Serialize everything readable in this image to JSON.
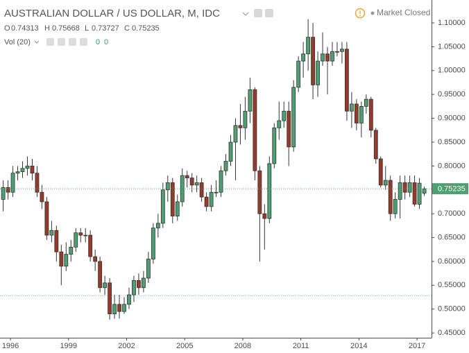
{
  "chart_data": {
    "type": "candlestick",
    "title": "AUSTRALIAN DOLLAR / US DOLLAR, M, IDC",
    "status": "Market Closed",
    "ohlc_labels": [
      "O",
      "H",
      "L",
      "C"
    ],
    "volume_label": "Vol (20)",
    "volume_values": [
      0,
      0
    ],
    "up_color": "#4e9f72",
    "down_color": "#963a29",
    "last_price_line": true,
    "reference_line": 0.528,
    "grid": false,
    "xlim": [
      1995.46,
      2017.75
    ],
    "xticks": [
      1996,
      1999,
      2002,
      2005,
      2008,
      2011,
      2014,
      2017
    ],
    "ylim": [
      0.44,
      1.148
    ],
    "yticks": [
      {
        "value": 0.45,
        "label": "0.45000"
      },
      {
        "value": 0.5,
        "label": "0.50000"
      },
      {
        "value": 0.55,
        "label": "0.55000"
      },
      {
        "value": 0.6,
        "label": "0.60000"
      },
      {
        "value": 0.65,
        "label": "0.65000"
      },
      {
        "value": 0.7,
        "label": "0.70000"
      },
      {
        "value": 0.75,
        "label": "0.75000"
      },
      {
        "value": 0.8,
        "label": "0.80000"
      },
      {
        "value": 0.85,
        "label": "0.85000"
      },
      {
        "value": 0.9,
        "label": "0.90000"
      },
      {
        "value": 0.95,
        "label": "0.95000"
      },
      {
        "value": 1.0,
        "label": "1.00000"
      },
      {
        "value": 1.05,
        "label": "1.05000"
      },
      {
        "value": 1.1,
        "label": "1.10000"
      }
    ],
    "x": [
      1995.5,
      1995.75,
      1996,
      1996.25,
      1996.5,
      1996.75,
      1997,
      1997.25,
      1997.5,
      1997.75,
      1998,
      1998.25,
      1998.5,
      1998.75,
      1999,
      1999.25,
      1999.5,
      1999.75,
      2000,
      2000.25,
      2000.5,
      2000.75,
      2001,
      2001.25,
      2001.5,
      2001.75,
      2002,
      2002.25,
      2002.5,
      2002.75,
      2003,
      2003.25,
      2003.5,
      2003.75,
      2004,
      2004.25,
      2004.5,
      2004.75,
      2005,
      2005.25,
      2005.5,
      2005.75,
      2006,
      2006.25,
      2006.5,
      2006.75,
      2007,
      2007.25,
      2007.5,
      2007.75,
      2008,
      2008.25,
      2008.5,
      2008.75,
      2009,
      2009.25,
      2009.5,
      2009.75,
      2010,
      2010.25,
      2010.5,
      2010.75,
      2011,
      2011.25,
      2011.5,
      2011.75,
      2012,
      2012.25,
      2012.5,
      2012.75,
      2013,
      2013.25,
      2013.5,
      2013.75,
      2014,
      2014.25,
      2014.5,
      2014.75,
      2015,
      2015.25,
      2015.5,
      2015.75,
      2016,
      2016.25,
      2016.5,
      2016.75,
      2017,
      2017.25
    ],
    "open": [
      0.73,
      0.755,
      0.745,
      0.785,
      0.788,
      0.795,
      0.8,
      0.785,
      0.745,
      0.725,
      0.655,
      0.665,
      0.62,
      0.59,
      0.615,
      0.63,
      0.66,
      0.655,
      0.655,
      0.61,
      0.6,
      0.545,
      0.555,
      0.49,
      0.51,
      0.495,
      0.51,
      0.53,
      0.56,
      0.545,
      0.565,
      0.605,
      0.67,
      0.68,
      0.75,
      0.765,
      0.695,
      0.725,
      0.78,
      0.775,
      0.76,
      0.765,
      0.735,
      0.715,
      0.745,
      0.745,
      0.79,
      0.81,
      0.85,
      0.885,
      0.88,
      0.915,
      0.96,
      0.79,
      0.7,
      0.69,
      0.805,
      0.88,
      0.895,
      0.915,
      0.84,
      0.965,
      1.02,
      1.035,
      1.07,
      0.97,
      1.02,
      1.035,
      1.02,
      1.04,
      1.04,
      1.045,
      0.915,
      0.93,
      0.89,
      0.925,
      0.94,
      0.875,
      0.815,
      0.76,
      0.77,
      0.7,
      0.73,
      0.765,
      0.745,
      0.765,
      0.72,
      0.74313
    ],
    "high": [
      0.77,
      0.77,
      0.8,
      0.8,
      0.81,
      0.82,
      0.815,
      0.8,
      0.76,
      0.735,
      0.685,
      0.675,
      0.635,
      0.64,
      0.645,
      0.67,
      0.67,
      0.67,
      0.665,
      0.625,
      0.61,
      0.57,
      0.565,
      0.53,
      0.53,
      0.525,
      0.545,
      0.57,
      0.575,
      0.58,
      0.62,
      0.68,
      0.7,
      0.765,
      0.78,
      0.775,
      0.74,
      0.795,
      0.79,
      0.785,
      0.78,
      0.775,
      0.745,
      0.76,
      0.77,
      0.8,
      0.825,
      0.865,
      0.9,
      0.93,
      0.945,
      0.985,
      0.965,
      0.8,
      0.72,
      0.82,
      0.89,
      0.935,
      0.935,
      0.935,
      0.98,
      1.03,
      1.06,
      1.108,
      1.1,
      1.04,
      1.08,
      1.05,
      1.06,
      1.06,
      1.06,
      1.06,
      0.955,
      0.94,
      0.935,
      0.95,
      0.945,
      0.88,
      0.82,
      0.8,
      0.78,
      0.745,
      0.78,
      0.78,
      0.78,
      0.78,
      0.775,
      0.75668
    ],
    "low": [
      0.705,
      0.73,
      0.735,
      0.77,
      0.775,
      0.78,
      0.77,
      0.735,
      0.71,
      0.645,
      0.64,
      0.6,
      0.55,
      0.58,
      0.6,
      0.62,
      0.64,
      0.64,
      0.6,
      0.58,
      0.535,
      0.53,
      0.478,
      0.48,
      0.48,
      0.49,
      0.5,
      0.515,
      0.53,
      0.535,
      0.555,
      0.595,
      0.65,
      0.67,
      0.725,
      0.68,
      0.685,
      0.715,
      0.755,
      0.745,
      0.745,
      0.725,
      0.705,
      0.705,
      0.735,
      0.735,
      0.78,
      0.8,
      0.77,
      0.845,
      0.855,
      0.89,
      0.77,
      0.6,
      0.625,
      0.68,
      0.795,
      0.855,
      0.88,
      0.8,
      0.83,
      0.955,
      0.985,
      1.0,
      0.94,
      0.945,
      1.01,
      0.95,
      1.01,
      1.03,
      1.015,
      0.895,
      0.88,
      0.875,
      0.86,
      0.91,
      0.86,
      0.805,
      0.755,
      0.75,
      0.685,
      0.69,
      0.69,
      0.73,
      0.735,
      0.715,
      0.71,
      0.73727
    ],
    "close": [
      0.755,
      0.745,
      0.785,
      0.788,
      0.795,
      0.8,
      0.785,
      0.745,
      0.725,
      0.655,
      0.665,
      0.62,
      0.59,
      0.615,
      0.63,
      0.66,
      0.655,
      0.655,
      0.61,
      0.6,
      0.545,
      0.555,
      0.49,
      0.51,
      0.495,
      0.51,
      0.53,
      0.56,
      0.545,
      0.565,
      0.605,
      0.67,
      0.68,
      0.75,
      0.765,
      0.695,
      0.725,
      0.78,
      0.775,
      0.76,
      0.765,
      0.735,
      0.715,
      0.745,
      0.745,
      0.79,
      0.81,
      0.85,
      0.885,
      0.88,
      0.915,
      0.96,
      0.79,
      0.7,
      0.69,
      0.805,
      0.88,
      0.895,
      0.915,
      0.84,
      0.965,
      1.02,
      1.035,
      1.07,
      0.97,
      1.02,
      1.035,
      1.02,
      1.04,
      1.04,
      1.045,
      0.915,
      0.93,
      0.89,
      0.925,
      0.94,
      0.875,
      0.815,
      0.76,
      0.77,
      0.7,
      0.73,
      0.765,
      0.745,
      0.765,
      0.72,
      0.764,
      0.75235
    ]
  }
}
